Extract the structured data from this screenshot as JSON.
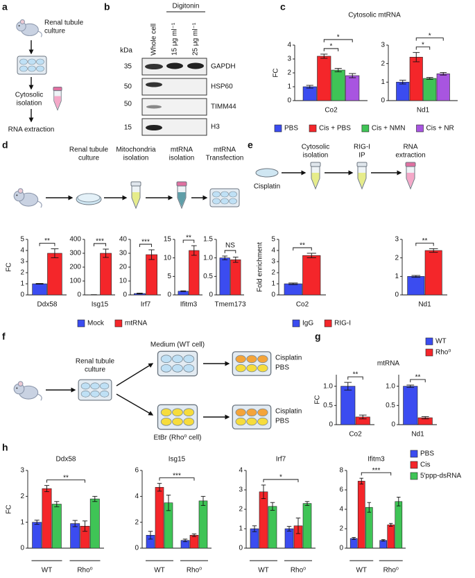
{
  "figure": {
    "a": {
      "label": "a",
      "steps": [
        [
          "Renal tubule",
          "culture"
        ],
        [
          "Cytosolic",
          "isolation"
        ],
        [
          "RNA extraction"
        ]
      ]
    },
    "b": {
      "label": "b",
      "treatment": "Digitonin",
      "lanes": [
        "Whole cell",
        "15 μg ml⁻¹",
        "25 μg ml⁻¹"
      ],
      "mw_unit": "kDa",
      "rows": [
        {
          "mw": 35,
          "protein": "GAPDH"
        },
        {
          "mw": 50,
          "protein": "HSP60"
        },
        {
          "mw": 50,
          "protein": "TIMM44"
        },
        {
          "mw": 15,
          "protein": "H3"
        }
      ]
    },
    "c": {
      "label": "c",
      "title": "Cytosolic mtRNA"
    },
    "d": {
      "label": "d",
      "steps": [
        [
          "Renal tubule",
          "culture"
        ],
        [
          "Mitochondria",
          "isolation"
        ],
        [
          "mtRNA",
          "isolation"
        ],
        [
          "mtRNA",
          "Transfection"
        ]
      ]
    },
    "e": {
      "label": "e",
      "steps": [
        [
          "Cisplatin"
        ],
        [
          "Cytosolic",
          "isolation"
        ],
        [
          "RIG-I",
          "IP"
        ],
        [
          "RNA",
          "extraction"
        ]
      ]
    },
    "f": {
      "label": "f",
      "steps": [
        [
          "Renal tubule",
          "culture"
        ]
      ],
      "conditions": [
        "Medium (WT cell)",
        "EtBr (Rho⁰ cell)"
      ],
      "treatments": [
        [
          "Cisplatin",
          "PBS"
        ],
        [
          "Cisplatin",
          "PBS"
        ]
      ]
    },
    "g": {
      "label": "g",
      "title": "mtRNA"
    },
    "h": {
      "label": "h"
    }
  },
  "chart_data": [
    {
      "type": "bar",
      "categories": [
        "Co2"
      ],
      "ylabel": "FC",
      "legend": "bottom",
      "ylim": [
        0,
        4
      ],
      "yticks": [
        0,
        1,
        2,
        3,
        4
      ],
      "series": [
        {
          "name": "PBS",
          "color": "#3b4cf0",
          "values": [
            1.0
          ],
          "errors": [
            0.1
          ]
        },
        {
          "name": "Cis + PBS",
          "color": "#f4262a",
          "values": [
            3.2
          ],
          "errors": [
            0.15
          ]
        },
        {
          "name": "Cis + NMN",
          "color": "#3fc456",
          "values": [
            2.2
          ],
          "errors": [
            0.12
          ]
        },
        {
          "name": "Cis + NR",
          "color": "#a855e0",
          "values": [
            1.8
          ],
          "errors": [
            0.15
          ]
        }
      ],
      "significance": [
        {
          "label": "*",
          "bars": [
            1,
            2
          ]
        },
        {
          "label": "*",
          "bars": [
            1,
            3
          ]
        }
      ]
    },
    {
      "type": "bar",
      "categories": [
        "Nd1"
      ],
      "ylim": [
        0,
        3
      ],
      "yticks": [
        0,
        1,
        2,
        3
      ],
      "series": [
        {
          "name": "PBS",
          "color": "#3b4cf0",
          "values": [
            1.0
          ],
          "errors": [
            0.1
          ]
        },
        {
          "name": "Cis + PBS",
          "color": "#f4262a",
          "values": [
            2.35
          ],
          "errors": [
            0.25
          ]
        },
        {
          "name": "Cis + NMN",
          "color": "#3fc456",
          "values": [
            1.2
          ],
          "errors": [
            0.05
          ]
        },
        {
          "name": "Cis + NR",
          "color": "#a855e0",
          "values": [
            1.45
          ],
          "errors": [
            0.07
          ]
        }
      ],
      "significance": [
        {
          "label": "*",
          "bars": [
            1,
            2
          ]
        },
        {
          "label": "*",
          "bars": [
            1,
            3
          ]
        }
      ]
    },
    {
      "type": "bar",
      "categories": [
        "Ddx58"
      ],
      "ylabel": "FC",
      "legend": "bottom",
      "ylim": [
        0,
        5
      ],
      "yticks": [
        0,
        1,
        2,
        3,
        4,
        5
      ],
      "series": [
        {
          "name": "Mock",
          "color": "#3b4cf0",
          "values": [
            1.0
          ],
          "errors": [
            0.03
          ]
        },
        {
          "name": "mtRNA",
          "color": "#f4262a",
          "values": [
            3.75
          ],
          "errors": [
            0.4
          ]
        }
      ],
      "significance": [
        {
          "label": "**",
          "bars": [
            0,
            1
          ]
        }
      ]
    },
    {
      "type": "bar",
      "categories": [
        "Isg15"
      ],
      "ylim": [
        0,
        400
      ],
      "yticks": [
        0,
        100,
        200,
        300,
        400
      ],
      "series": [
        {
          "name": "Mock",
          "color": "#3b4cf0",
          "values": [
            1
          ],
          "errors": [
            0.5
          ]
        },
        {
          "name": "mtRNA",
          "color": "#f4262a",
          "values": [
            300
          ],
          "errors": [
            30
          ]
        }
      ],
      "significance": [
        {
          "label": "***",
          "bars": [
            0,
            1
          ]
        }
      ]
    },
    {
      "type": "bar",
      "categories": [
        "Irf7"
      ],
      "ylim": [
        0,
        40
      ],
      "yticks": [
        0,
        10,
        20,
        30,
        40
      ],
      "series": [
        {
          "name": "Mock",
          "color": "#3b4cf0",
          "values": [
            1
          ],
          "errors": [
            0.3
          ]
        },
        {
          "name": "mtRNA",
          "color": "#f4262a",
          "values": [
            29
          ],
          "errors": [
            3.5
          ]
        }
      ],
      "significance": [
        {
          "label": "***",
          "bars": [
            0,
            1
          ]
        }
      ]
    },
    {
      "type": "bar",
      "categories": [
        "Ifitm3"
      ],
      "ylim": [
        0,
        15
      ],
      "yticks": [
        0,
        5,
        10,
        15
      ],
      "series": [
        {
          "name": "Mock",
          "color": "#3b4cf0",
          "values": [
            1
          ],
          "errors": [
            0.1
          ]
        },
        {
          "name": "mtRNA",
          "color": "#f4262a",
          "values": [
            12
          ],
          "errors": [
            1.3
          ]
        }
      ],
      "significance": [
        {
          "label": "**",
          "bars": [
            0,
            1
          ]
        }
      ]
    },
    {
      "type": "bar",
      "categories": [
        "Tmem173"
      ],
      "ylim": [
        0,
        1.5
      ],
      "yticks": [
        0,
        0.5,
        {
          "value": 1,
          "label": "1.0"
        },
        1.5
      ],
      "series": [
        {
          "name": "Mock",
          "color": "#3b4cf0",
          "values": [
            1.0
          ],
          "errors": [
            0.05
          ]
        },
        {
          "name": "mtRNA",
          "color": "#f4262a",
          "values": [
            0.95
          ],
          "errors": [
            0.07
          ]
        }
      ],
      "significance": [
        {
          "label": "NS",
          "bars": [
            0,
            1
          ]
        }
      ]
    },
    {
      "type": "bar",
      "categories": [
        "Co2"
      ],
      "ylabel": "Fold enrichment",
      "legend": "bottom",
      "ylim": [
        0,
        5
      ],
      "yticks": [
        0,
        1,
        2,
        3,
        4,
        5
      ],
      "series": [
        {
          "name": "IgG",
          "color": "#3b4cf0",
          "values": [
            1.0
          ],
          "errors": [
            0.07
          ]
        },
        {
          "name": "RIG-I",
          "color": "#f4262a",
          "values": [
            3.55
          ],
          "errors": [
            0.2
          ]
        }
      ],
      "significance": [
        {
          "label": "**",
          "bars": [
            0,
            1
          ]
        }
      ]
    },
    {
      "type": "bar",
      "categories": [
        "Nd1"
      ],
      "ylim": [
        0,
        3
      ],
      "yticks": [
        0,
        1,
        2,
        3
      ],
      "series": [
        {
          "name": "IgG",
          "color": "#3b4cf0",
          "values": [
            1.0
          ],
          "errors": [
            0.05
          ]
        },
        {
          "name": "RIG-I",
          "color": "#f4262a",
          "values": [
            2.4
          ],
          "errors": [
            0.1
          ]
        }
      ],
      "significance": [
        {
          "label": "**",
          "bars": [
            0,
            1
          ]
        }
      ]
    },
    {
      "type": "bar",
      "categories": [
        "Co2"
      ],
      "ylabel": "FC",
      "legend": "top-right",
      "ylim": [
        0,
        1.3
      ],
      "yticks": [
        0,
        0.5,
        {
          "value": 1,
          "label": "1.0"
        }
      ],
      "series": [
        {
          "name": "WT",
          "color": "#3b4cf0",
          "values": [
            1.0
          ],
          "errors": [
            0.1
          ]
        },
        {
          "name": "Rho⁰",
          "color": "#f4262a",
          "values": [
            0.2
          ],
          "errors": [
            0.05
          ]
        }
      ],
      "significance": [
        {
          "label": "**",
          "bars": [
            0,
            1
          ]
        }
      ]
    },
    {
      "type": "bar",
      "categories": [
        "Nd1"
      ],
      "ylim": [
        0,
        1.3
      ],
      "yticks": [
        0,
        0.5,
        {
          "value": 1,
          "label": "1.0"
        }
      ],
      "series": [
        {
          "name": "WT",
          "color": "#3b4cf0",
          "values": [
            1.0
          ],
          "errors": [
            0.03
          ]
        },
        {
          "name": "Rho⁰",
          "color": "#f4262a",
          "values": [
            0.18
          ],
          "errors": [
            0.03
          ]
        }
      ],
      "significance": [
        {
          "label": "**",
          "bars": [
            0,
            1
          ]
        }
      ]
    },
    {
      "type": "bar",
      "title": "Ddx58",
      "categories": [
        "WT",
        "Rho⁰"
      ],
      "ylabel": "FC",
      "legend": "top-right",
      "ylim": [
        0,
        3
      ],
      "yticks": [
        0,
        1,
        2,
        3
      ],
      "series": [
        {
          "name": "PBS",
          "color": "#3b4cf0",
          "values": [
            1.0,
            0.95
          ],
          "errors": [
            0.08,
            0.12
          ]
        },
        {
          "name": "Cis",
          "color": "#f4262a",
          "values": [
            2.3,
            0.85
          ],
          "errors": [
            0.12,
            0.2
          ]
        },
        {
          "name": "5′ppp-dsRNA",
          "color": "#3fc456",
          "values": [
            1.7,
            1.9
          ],
          "errors": [
            0.1,
            0.1
          ]
        }
      ],
      "significance": [
        {
          "label": "**",
          "bars": [
            1,
            4
          ]
        }
      ]
    },
    {
      "type": "bar",
      "title": "Isg15",
      "categories": [
        "WT",
        "Rho⁰"
      ],
      "ylim": [
        0,
        6
      ],
      "yticks": [
        0,
        2,
        4,
        6
      ],
      "series": [
        {
          "name": "PBS",
          "color": "#3b4cf0",
          "values": [
            1.0,
            0.6
          ],
          "errors": [
            0.3,
            0.1
          ]
        },
        {
          "name": "Cis",
          "color": "#f4262a",
          "values": [
            4.7,
            1.0
          ],
          "errors": [
            0.3,
            0.1
          ]
        },
        {
          "name": "5′ppp-dsRNA",
          "color": "#3fc456",
          "values": [
            3.5,
            3.65
          ],
          "errors": [
            0.6,
            0.35
          ]
        }
      ],
      "significance": [
        {
          "label": "***",
          "bars": [
            1,
            4
          ]
        }
      ]
    },
    {
      "type": "bar",
      "title": "Irf7",
      "categories": [
        "WT",
        "Rho⁰"
      ],
      "ylim": [
        0,
        4
      ],
      "yticks": [
        0,
        1,
        2,
        3,
        4
      ],
      "series": [
        {
          "name": "PBS",
          "color": "#3b4cf0",
          "values": [
            1.0,
            1.0
          ],
          "errors": [
            0.15,
            0.12
          ]
        },
        {
          "name": "Cis",
          "color": "#f4262a",
          "values": [
            2.9,
            1.15
          ],
          "errors": [
            0.35,
            0.4
          ]
        },
        {
          "name": "5′ppp-dsRNA",
          "color": "#3fc456",
          "values": [
            2.15,
            2.3
          ],
          "errors": [
            0.2,
            0.1
          ]
        }
      ],
      "significance": [
        {
          "label": "*",
          "bars": [
            1,
            4
          ]
        }
      ]
    },
    {
      "type": "bar",
      "title": "Ifitm3",
      "categories": [
        "WT",
        "Rho⁰"
      ],
      "ylim": [
        0,
        8
      ],
      "yticks": [
        0,
        2,
        4,
        6,
        8
      ],
      "series": [
        {
          "name": "PBS",
          "color": "#3b4cf0",
          "values": [
            1.0,
            0.8
          ],
          "errors": [
            0.1,
            0.08
          ]
        },
        {
          "name": "Cis",
          "color": "#f4262a",
          "values": [
            6.9,
            2.4
          ],
          "errors": [
            0.3,
            0.15
          ]
        },
        {
          "name": "5′ppp-dsRNA",
          "color": "#3fc456",
          "values": [
            4.2,
            4.8
          ],
          "errors": [
            0.5,
            0.45
          ]
        }
      ],
      "significance": [
        {
          "label": "***",
          "bars": [
            1,
            4
          ]
        }
      ]
    }
  ]
}
